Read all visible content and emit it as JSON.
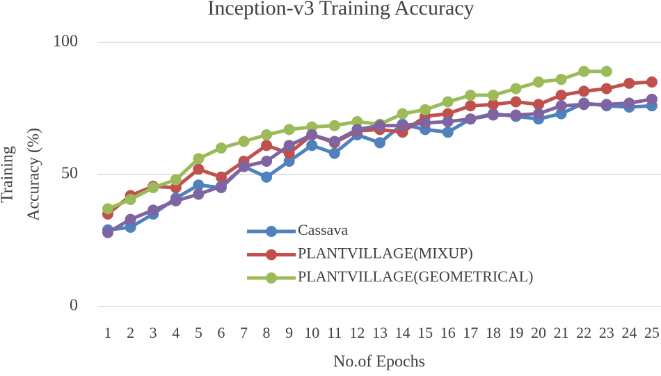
{
  "chart_data": {
    "type": "line",
    "title": "Inception-v3 Training Accuracy",
    "x_label": "No.of Epochs",
    "y_label_lines": [
      "Training",
      "Accuracy (%)"
    ],
    "categories": [
      "1",
      "2",
      "3",
      "4",
      "5",
      "6",
      "7",
      "8",
      "9",
      "10",
      "11",
      "12",
      "13",
      "14",
      "15",
      "16",
      "17",
      "18",
      "19",
      "20",
      "21",
      "22",
      "23",
      "24",
      "25"
    ],
    "ylim": [
      0,
      100
    ],
    "yticks": [
      0,
      50,
      100
    ],
    "grid": true,
    "legend": "inside",
    "series": [
      {
        "name": "Cassava",
        "color": "#4f81bd",
        "values": [
          29,
          30,
          35,
          41,
          46,
          45,
          53,
          49,
          55,
          61,
          58,
          65,
          62,
          69,
          67,
          66,
          71,
          73,
          72,
          71,
          73,
          77,
          76,
          75.5,
          76
        ]
      },
      {
        "name": "PLANTVILLAGE(MIXUP)",
        "color": "#c0504d",
        "values": [
          35,
          42,
          45.5,
          45,
          52,
          49,
          55,
          61,
          58,
          65,
          62,
          66.5,
          67,
          66,
          72,
          73,
          76,
          76.5,
          77.5,
          76.5,
          80,
          81.5,
          82.5,
          84.5,
          85
        ]
      },
      {
        "name": "PLANTVILLAGE(GEOMETRICAL)",
        "color": "#9bbb59",
        "values": [
          37,
          40.5,
          45,
          48,
          56,
          60,
          62.5,
          65,
          67,
          68,
          68.5,
          70,
          69,
          73,
          74.5,
          77.5,
          80,
          80,
          82.5,
          85,
          86,
          89,
          89,
          null,
          null
        ]
      },
      {
        "color": "#8064a2",
        "values": [
          28,
          33,
          36.5,
          40,
          42.5,
          45.5,
          53,
          55,
          61,
          65,
          62.5,
          67,
          68.5,
          68.5,
          69.5,
          70,
          71,
          72.5,
          72.5,
          73,
          76,
          76.5,
          76.5,
          77,
          78.5
        ]
      }
    ]
  }
}
